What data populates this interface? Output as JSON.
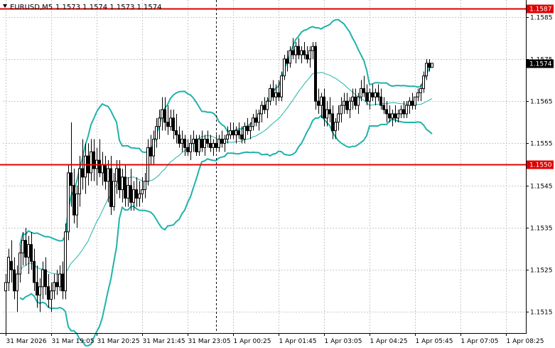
{
  "header": {
    "symbol": "EURUSD,M5",
    "ohlc": "1.1573 1.1574 1.1573 1.1574"
  },
  "colors": {
    "background": "#ffffff",
    "axis": "#000000",
    "grid": "#c8c8c8",
    "bollinger": "#20b2aa",
    "level": "#e00000",
    "candle_up": "#ffffff",
    "candle_down": "#000000"
  },
  "chart_data": {
    "type": "candlestick",
    "symbol": "EURUSD",
    "timeframe": "M5",
    "ylim": [
      1.151,
      1.1589
    ],
    "y_ticks": [
      "1.1585",
      "1.1575",
      "1.1565",
      "1.1555",
      "1.1545",
      "1.1535",
      "1.1525",
      "1.1515"
    ],
    "x_ticks": [
      "31 Mar 2026",
      "31 Mar 19:05",
      "31 Mar 20:25",
      "31 Mar 21:45",
      "31 Mar 23:05",
      "1 Apr 00:25",
      "1 Apr 01:45",
      "1 Apr 03:05",
      "1 Apr 04:25",
      "1 Apr 05:45",
      "1 Apr 07:05",
      "1 Apr 08:25"
    ],
    "bars_per_tick": 16,
    "crosshair_bar": 74,
    "horizontal_levels": [
      {
        "value": 1.1587,
        "label": "1.1587"
      },
      {
        "value": 1.155,
        "label": "1.1550"
      }
    ],
    "current_price": {
      "value": 1.1574,
      "label": "1.1574"
    },
    "grid": true,
    "candles": [
      [
        1.152,
        1.1524,
        1.151,
        1.1522
      ],
      [
        1.1522,
        1.153,
        1.152,
        1.1528
      ],
      [
        1.1527,
        1.1532,
        1.1522,
        1.1525
      ],
      [
        1.1525,
        1.1528,
        1.1518,
        1.152
      ],
      [
        1.152,
        1.1526,
        1.1515,
        1.1524
      ],
      [
        1.1524,
        1.1531,
        1.1522,
        1.1529
      ],
      [
        1.1529,
        1.1534,
        1.1526,
        1.1532
      ],
      [
        1.1532,
        1.1535,
        1.1526,
        1.1528
      ],
      [
        1.1528,
        1.1533,
        1.1524,
        1.1531
      ],
      [
        1.1531,
        1.1534,
        1.1525,
        1.1527
      ],
      [
        1.1527,
        1.153,
        1.152,
        1.1522
      ],
      [
        1.1522,
        1.1526,
        1.1516,
        1.1519
      ],
      [
        1.1519,
        1.1523,
        1.1515,
        1.1521
      ],
      [
        1.1521,
        1.1527,
        1.1518,
        1.1525
      ],
      [
        1.1525,
        1.1528,
        1.1519,
        1.1521
      ],
      [
        1.1521,
        1.1524,
        1.1516,
        1.1518
      ],
      [
        1.1518,
        1.1522,
        1.1515,
        1.152
      ],
      [
        1.152,
        1.1524,
        1.1518,
        1.1522
      ],
      [
        1.1522,
        1.1525,
        1.1519,
        1.1521
      ],
      [
        1.1521,
        1.1526,
        1.152,
        1.1524
      ],
      [
        1.1524,
        1.1527,
        1.1518,
        1.152
      ],
      [
        1.152,
        1.1536,
        1.1518,
        1.1534
      ],
      [
        1.1534,
        1.155,
        1.1532,
        1.1548
      ],
      [
        1.1548,
        1.156,
        1.154,
        1.1545
      ],
      [
        1.1545,
        1.1549,
        1.1536,
        1.1538
      ],
      [
        1.1538,
        1.1545,
        1.1535,
        1.1543
      ],
      [
        1.1543,
        1.1552,
        1.154,
        1.1549
      ],
      [
        1.1549,
        1.1556,
        1.1544,
        1.1547
      ],
      [
        1.1547,
        1.1555,
        1.1543,
        1.1552
      ],
      [
        1.1552,
        1.1555,
        1.1545,
        1.1548
      ],
      [
        1.1548,
        1.1556,
        1.1546,
        1.1553
      ],
      [
        1.1553,
        1.1556,
        1.1546,
        1.1549
      ],
      [
        1.1549,
        1.1554,
        1.1545,
        1.1551
      ],
      [
        1.1551,
        1.1556,
        1.1547,
        1.1548
      ],
      [
        1.1548,
        1.1553,
        1.1545,
        1.155
      ],
      [
        1.155,
        1.1552,
        1.1544,
        1.1546
      ],
      [
        1.1546,
        1.1551,
        1.1541,
        1.1549
      ],
      [
        1.1549,
        1.1552,
        1.1538,
        1.154
      ],
      [
        1.154,
        1.1548,
        1.1539,
        1.1546
      ],
      [
        1.1546,
        1.1551,
        1.1543,
        1.1549
      ],
      [
        1.1549,
        1.1551,
        1.1542,
        1.1544
      ],
      [
        1.1544,
        1.1549,
        1.1541,
        1.1547
      ],
      [
        1.1547,
        1.155,
        1.154,
        1.1542
      ],
      [
        1.1542,
        1.1547,
        1.154,
        1.1545
      ],
      [
        1.1545,
        1.1549,
        1.1539,
        1.1541
      ],
      [
        1.1541,
        1.1546,
        1.1539,
        1.1544
      ],
      [
        1.1544,
        1.1547,
        1.154,
        1.1542
      ],
      [
        1.1542,
        1.1546,
        1.154,
        1.1543
      ],
      [
        1.1543,
        1.1547,
        1.1541,
        1.1544
      ],
      [
        1.1544,
        1.1548,
        1.1542,
        1.1546
      ],
      [
        1.1546,
        1.1556,
        1.1545,
        1.1554
      ],
      [
        1.1554,
        1.1557,
        1.155,
        1.1552
      ],
      [
        1.1552,
        1.1558,
        1.155,
        1.1556
      ],
      [
        1.1556,
        1.1561,
        1.1554,
        1.1559
      ],
      [
        1.1559,
        1.1563,
        1.1556,
        1.1561
      ],
      [
        1.1561,
        1.1566,
        1.1558,
        1.1563
      ],
      [
        1.1563,
        1.1566,
        1.1558,
        1.156
      ],
      [
        1.156,
        1.1564,
        1.1557,
        1.1559
      ],
      [
        1.1559,
        1.1563,
        1.1558,
        1.1561
      ],
      [
        1.1561,
        1.1563,
        1.1556,
        1.1558
      ],
      [
        1.1558,
        1.1562,
        1.1555,
        1.1557
      ],
      [
        1.1557,
        1.1559,
        1.1554,
        1.1555
      ],
      [
        1.1555,
        1.1558,
        1.1553,
        1.1556
      ],
      [
        1.1556,
        1.1557,
        1.1552,
        1.1554
      ],
      [
        1.1554,
        1.1556,
        1.1552,
        1.1553
      ],
      [
        1.1553,
        1.1557,
        1.1551,
        1.1555
      ],
      [
        1.1555,
        1.1558,
        1.1553,
        1.1556
      ],
      [
        1.1556,
        1.1557,
        1.1552,
        1.1553
      ],
      [
        1.1553,
        1.1557,
        1.1552,
        1.1556
      ],
      [
        1.1556,
        1.1558,
        1.1553,
        1.1554
      ],
      [
        1.1554,
        1.1557,
        1.1552,
        1.1556
      ],
      [
        1.1556,
        1.1558,
        1.1554,
        1.1555
      ],
      [
        1.1555,
        1.1557,
        1.1553,
        1.1554
      ],
      [
        1.1554,
        1.1556,
        1.1552,
        1.1555
      ],
      [
        1.1555,
        1.1557,
        1.1553,
        1.1554
      ],
      [
        1.1554,
        1.1557,
        1.1553,
        1.1556
      ],
      [
        1.1556,
        1.1558,
        1.1554,
        1.1555
      ],
      [
        1.1555,
        1.1557,
        1.1553,
        1.1556
      ],
      [
        1.1556,
        1.1559,
        1.1555,
        1.1557
      ],
      [
        1.1557,
        1.156,
        1.1556,
        1.1558
      ],
      [
        1.1558,
        1.156,
        1.1556,
        1.1557
      ],
      [
        1.1557,
        1.1559,
        1.1555,
        1.1558
      ],
      [
        1.1558,
        1.156,
        1.1556,
        1.1557
      ],
      [
        1.1557,
        1.1559,
        1.1555,
        1.1556
      ],
      [
        1.1556,
        1.156,
        1.1555,
        1.1559
      ],
      [
        1.1559,
        1.1561,
        1.1557,
        1.1558
      ],
      [
        1.1558,
        1.156,
        1.1556,
        1.1559
      ],
      [
        1.1559,
        1.1562,
        1.1558,
        1.1561
      ],
      [
        1.1561,
        1.1563,
        1.1559,
        1.156
      ],
      [
        1.156,
        1.1563,
        1.1558,
        1.1562
      ],
      [
        1.1562,
        1.1565,
        1.156,
        1.1564
      ],
      [
        1.1564,
        1.1566,
        1.1562,
        1.1563
      ],
      [
        1.1563,
        1.1566,
        1.1561,
        1.1565
      ],
      [
        1.1565,
        1.1569,
        1.1564,
        1.1568
      ],
      [
        1.1568,
        1.157,
        1.1565,
        1.1566
      ],
      [
        1.1566,
        1.1569,
        1.1564,
        1.1567
      ],
      [
        1.1567,
        1.157,
        1.1565,
        1.1566
      ],
      [
        1.1566,
        1.1572,
        1.1565,
        1.1571
      ],
      [
        1.1571,
        1.1576,
        1.157,
        1.1575
      ],
      [
        1.1575,
        1.1577,
        1.1572,
        1.1574
      ],
      [
        1.1574,
        1.1578,
        1.1573,
        1.1577
      ],
      [
        1.1577,
        1.158,
        1.1575,
        1.1576
      ],
      [
        1.1576,
        1.1579,
        1.1574,
        1.1578
      ],
      [
        1.1578,
        1.158,
        1.1575,
        1.1576
      ],
      [
        1.1576,
        1.1578,
        1.1574,
        1.1577
      ],
      [
        1.1577,
        1.1579,
        1.1575,
        1.1576
      ],
      [
        1.1576,
        1.1578,
        1.1574,
        1.1575
      ],
      [
        1.1575,
        1.1578,
        1.1573,
        1.1577
      ],
      [
        1.1577,
        1.1579,
        1.1575,
        1.1578
      ],
      [
        1.1578,
        1.1579,
        1.1563,
        1.1565
      ],
      [
        1.1565,
        1.1568,
        1.1562,
        1.1564
      ],
      [
        1.1564,
        1.1567,
        1.1561,
        1.1566
      ],
      [
        1.1566,
        1.1568,
        1.1559,
        1.1561
      ],
      [
        1.1561,
        1.1565,
        1.1559,
        1.1563
      ],
      [
        1.1563,
        1.1566,
        1.156,
        1.1562
      ],
      [
        1.1562,
        1.1564,
        1.1556,
        1.1558
      ],
      [
        1.1558,
        1.1561,
        1.1556,
        1.156
      ],
      [
        1.156,
        1.1564,
        1.1558,
        1.1562
      ],
      [
        1.1562,
        1.1566,
        1.156,
        1.1564
      ],
      [
        1.1564,
        1.1567,
        1.1562,
        1.1565
      ],
      [
        1.1565,
        1.1567,
        1.1562,
        1.1563
      ],
      [
        1.1563,
        1.1566,
        1.1561,
        1.1565
      ],
      [
        1.1565,
        1.1568,
        1.1563,
        1.1566
      ],
      [
        1.1566,
        1.1568,
        1.1563,
        1.1564
      ],
      [
        1.1564,
        1.1567,
        1.1562,
        1.1566
      ],
      [
        1.1566,
        1.157,
        1.1565,
        1.1568
      ],
      [
        1.1568,
        1.1571,
        1.1566,
        1.1567
      ],
      [
        1.1567,
        1.1569,
        1.1564,
        1.1565
      ],
      [
        1.1565,
        1.1568,
        1.1563,
        1.1567
      ],
      [
        1.1567,
        1.1569,
        1.1565,
        1.1566
      ],
      [
        1.1566,
        1.1568,
        1.1564,
        1.1567
      ],
      [
        1.1567,
        1.1569,
        1.1565,
        1.1566
      ],
      [
        1.1566,
        1.1568,
        1.1563,
        1.1564
      ],
      [
        1.1564,
        1.1566,
        1.1562,
        1.1563
      ],
      [
        1.1563,
        1.1565,
        1.156,
        1.1562
      ],
      [
        1.1562,
        1.1564,
        1.156,
        1.1561
      ],
      [
        1.1561,
        1.1563,
        1.1559,
        1.1562
      ],
      [
        1.1562,
        1.1564,
        1.156,
        1.1561
      ],
      [
        1.1561,
        1.1563,
        1.156,
        1.1562
      ],
      [
        1.1562,
        1.1564,
        1.1561,
        1.1563
      ],
      [
        1.1563,
        1.1565,
        1.1561,
        1.1562
      ],
      [
        1.1562,
        1.1565,
        1.1561,
        1.1564
      ],
      [
        1.1564,
        1.1566,
        1.1562,
        1.1565
      ],
      [
        1.1565,
        1.1567,
        1.1563,
        1.1564
      ],
      [
        1.1564,
        1.1566,
        1.1563,
        1.1566
      ],
      [
        1.1566,
        1.1568,
        1.1565,
        1.1567
      ],
      [
        1.1567,
        1.1569,
        1.1565,
        1.1568
      ],
      [
        1.1568,
        1.1572,
        1.1567,
        1.1571
      ],
      [
        1.1571,
        1.1575,
        1.157,
        1.1574
      ],
      [
        1.1574,
        1.1575,
        1.1572,
        1.1573
      ],
      [
        1.1573,
        1.1574,
        1.1573,
        1.1574
      ]
    ]
  }
}
